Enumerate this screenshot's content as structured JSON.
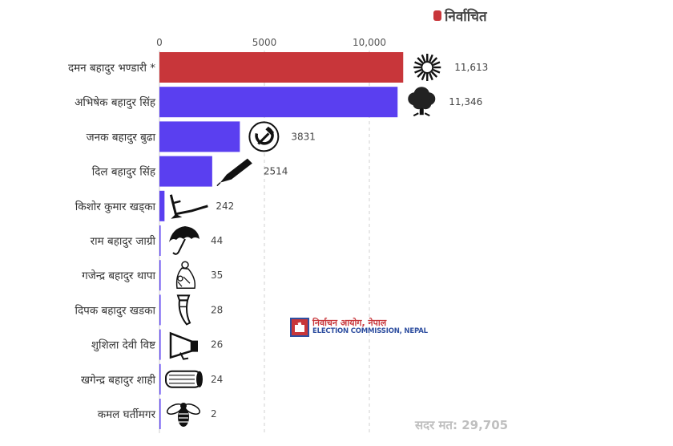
{
  "legend": {
    "label": "निर्वाचित",
    "color": "#c8363a"
  },
  "chart_data": {
    "type": "bar",
    "orientation": "horizontal",
    "xlim": [
      0,
      12000
    ],
    "ticks": [
      {
        "value": 0,
        "label": "0"
      },
      {
        "value": 5000,
        "label": "5000"
      },
      {
        "value": 10000,
        "label": "10,000"
      }
    ],
    "grid": "vertical dashed",
    "colors": {
      "elected": "#c8363a",
      "other": "#5a3ff0"
    },
    "bars": [
      {
        "category": "दमन बहादुर भण्डारी *",
        "value": 11613,
        "value_label": "11,613",
        "elected": true,
        "symbol": "sun-icon"
      },
      {
        "category": "अभिषेक बहादुर सिंह",
        "value": 11346,
        "value_label": "11,346",
        "elected": false,
        "symbol": "tree-icon"
      },
      {
        "category": "जनक बहादुर बुढा",
        "value": 3831,
        "value_label": "3831",
        "elected": false,
        "symbol": "hammer-sickle-icon"
      },
      {
        "category": "दिल बहादुर सिंह",
        "value": 2514,
        "value_label": "2514",
        "elected": false,
        "symbol": "pen-icon"
      },
      {
        "category": "किशोर कुमार खड्का",
        "value": 242,
        "value_label": "242",
        "elected": false,
        "symbol": "plough-icon"
      },
      {
        "category": "राम बहादुर जाग्री",
        "value": 44,
        "value_label": "44",
        "elected": false,
        "symbol": "umbrella-icon"
      },
      {
        "category": "गजेन्द्र बहादुर थापा",
        "value": 35,
        "value_label": "35",
        "elected": false,
        "symbol": "mother-child-icon"
      },
      {
        "category": "दिपक बहादुर खडका",
        "value": 28,
        "value_label": "28",
        "elected": false,
        "symbol": "horn-icon"
      },
      {
        "category": "शुशिला देवी विष्ट",
        "value": 26,
        "value_label": "26",
        "elected": false,
        "symbol": "megaphone-icon"
      },
      {
        "category": "खगेन्द्र बहादुर शाही",
        "value": 24,
        "value_label": "24",
        "elected": false,
        "symbol": "log-icon"
      },
      {
        "category": "कमल घर्तीमगर",
        "value": 2,
        "value_label": "2",
        "elected": false,
        "symbol": "bee-icon"
      }
    ]
  },
  "total": {
    "text": "सदर मत: 29,705"
  },
  "logo": {
    "name_np": "निर्वाचन आयोग, नेपाल",
    "name_en": "ELECTION COMMISSION, NEPAL"
  }
}
